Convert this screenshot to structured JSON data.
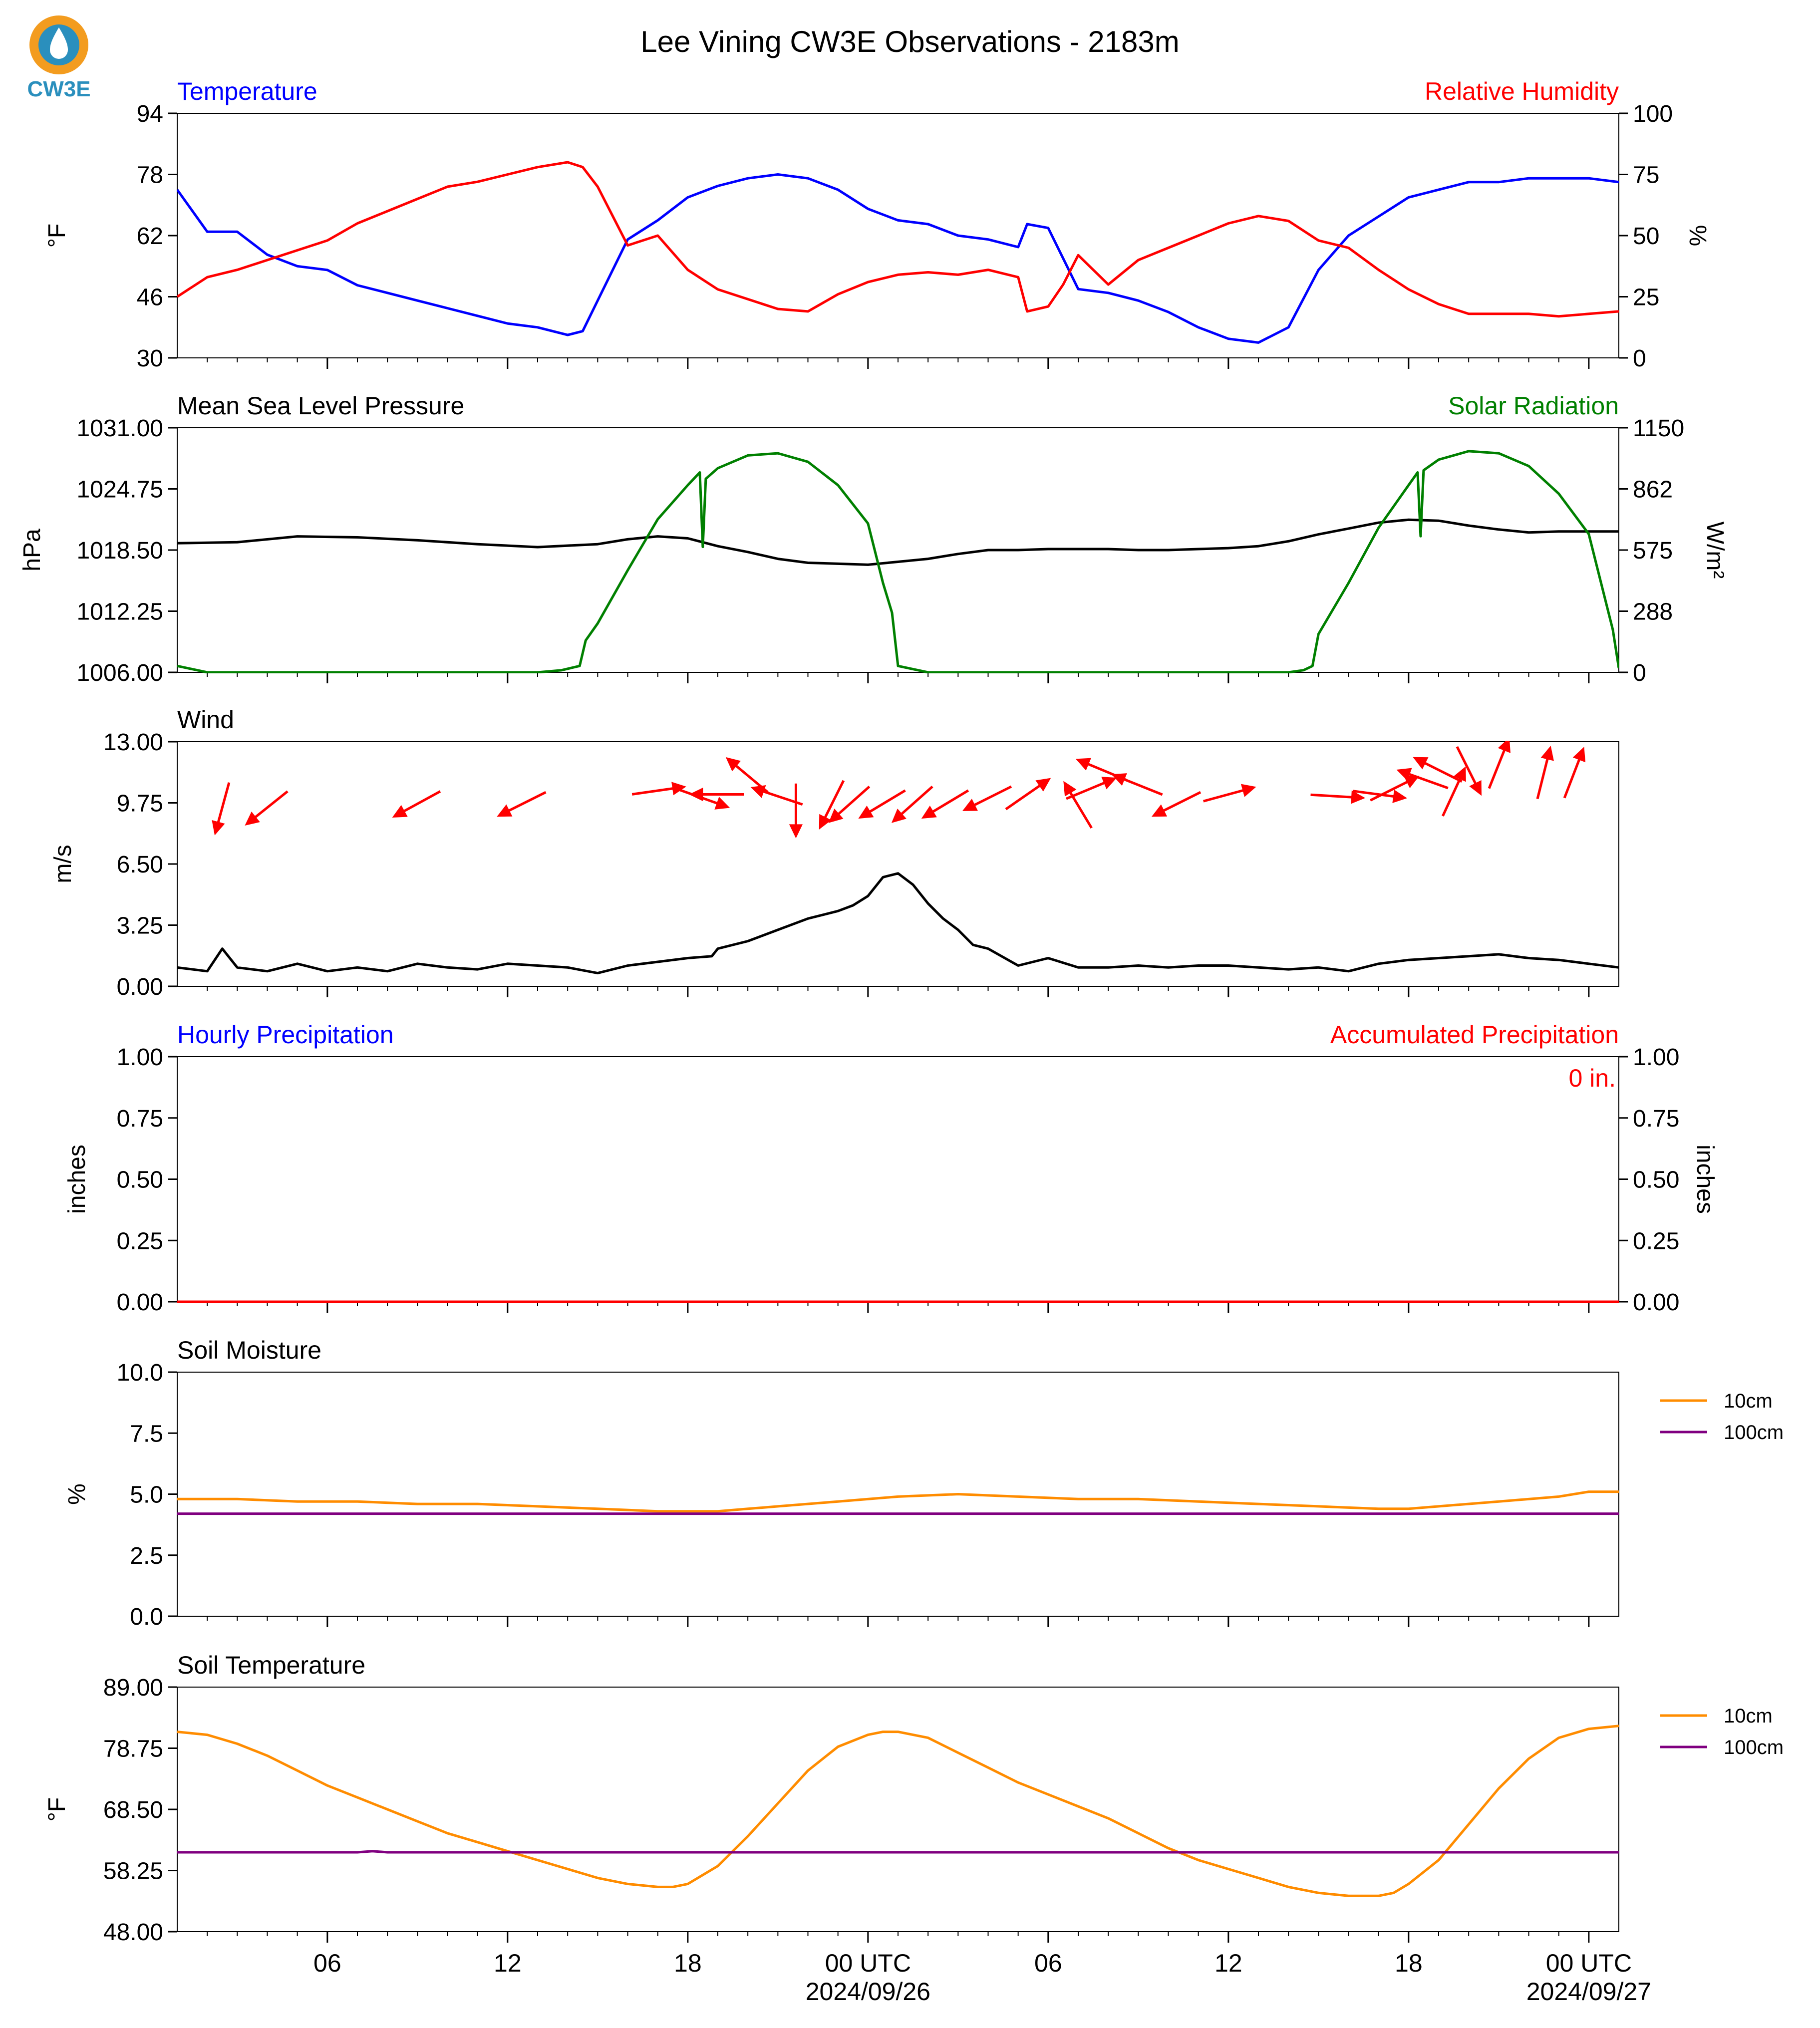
{
  "page_title": "Lee Vining CW3E Observations - 2183m",
  "logo": {
    "text": "CW3E",
    "icon": "cw3e-logo-icon",
    "accent": "#2a8fbd",
    "ring": "#f39c1f"
  },
  "colors": {
    "temperature": "#0000ff",
    "humidity": "#ff0000",
    "pressure": "#000000",
    "solar": "#008000",
    "wind_arrow": "#ff0000",
    "wind_speed": "#000000",
    "soil_10cm": "#ff8c00",
    "soil_100cm": "#800080"
  },
  "x_axis": {
    "range_hours": [
      0,
      48
    ],
    "ticks": [
      {
        "hour": 5,
        "label": "06",
        "sublabel": ""
      },
      {
        "hour": 11,
        "label": "12",
        "sublabel": ""
      },
      {
        "hour": 17,
        "label": "18",
        "sublabel": ""
      },
      {
        "hour": 23,
        "label": "00 UTC",
        "sublabel": "2024/09/26"
      },
      {
        "hour": 29,
        "label": "06",
        "sublabel": ""
      },
      {
        "hour": 35,
        "label": "12",
        "sublabel": ""
      },
      {
        "hour": 41,
        "label": "18",
        "sublabel": ""
      },
      {
        "hour": 47,
        "label": "00 UTC",
        "sublabel": "2024/09/27"
      }
    ]
  },
  "chart_data": [
    {
      "type": "line",
      "left_title": "Temperature",
      "right_title": "Relative Humidity",
      "ylabel": "°F",
      "y2label": "%",
      "ylim": [
        30,
        94
      ],
      "yticks": [
        "30",
        "46",
        "62",
        "78",
        "94"
      ],
      "y2lim": [
        0,
        100
      ],
      "y2ticks": [
        "0",
        "25",
        "50",
        "75",
        "100"
      ],
      "series": [
        {
          "axis": "left",
          "color": "#0000ff",
          "x": [
            0,
            1,
            2,
            3,
            4,
            5,
            6,
            7,
            8,
            9,
            10,
            11,
            12,
            13,
            13.5,
            14,
            15,
            16,
            17,
            18,
            19,
            20,
            21,
            22,
            23,
            24,
            25,
            26,
            27,
            28,
            28.3,
            29,
            29.5,
            30,
            31,
            32,
            33,
            34,
            35,
            36,
            37,
            38,
            39,
            40,
            41,
            42,
            43,
            44,
            45,
            46,
            47,
            48
          ],
          "y": [
            74,
            63,
            63,
            57,
            54,
            53,
            49,
            47,
            45,
            43,
            41,
            39,
            38,
            36,
            37,
            45,
            61,
            66,
            72,
            75,
            77,
            78,
            77,
            74,
            69,
            66,
            65,
            62,
            61,
            59,
            65,
            64,
            56,
            48,
            47,
            45,
            42,
            38,
            35,
            34,
            38,
            53,
            62,
            67,
            72,
            74,
            76,
            76,
            77,
            77,
            77,
            76
          ]
        },
        {
          "axis": "right",
          "color": "#ff0000",
          "x": [
            0,
            1,
            2,
            3,
            4,
            5,
            6,
            7,
            8,
            9,
            10,
            11,
            12,
            13,
            13.5,
            14,
            15,
            16,
            17,
            18,
            19,
            20,
            21,
            22,
            23,
            24,
            25,
            26,
            27,
            28,
            28.3,
            29,
            29.5,
            30,
            31,
            32,
            33,
            34,
            35,
            36,
            37,
            38,
            39,
            40,
            41,
            42,
            43,
            44,
            45,
            46,
            47,
            48
          ],
          "y": [
            25,
            33,
            36,
            40,
            44,
            48,
            55,
            60,
            65,
            70,
            72,
            75,
            78,
            80,
            78,
            70,
            46,
            50,
            36,
            28,
            24,
            20,
            19,
            26,
            31,
            34,
            35,
            34,
            36,
            33,
            19,
            21,
            30,
            42,
            30,
            40,
            45,
            50,
            55,
            58,
            56,
            48,
            45,
            36,
            28,
            22,
            18,
            18,
            18,
            17,
            18,
            19
          ]
        }
      ]
    },
    {
      "type": "line",
      "left_title": "Mean Sea Level Pressure",
      "right_title": "Solar Radiation",
      "ylabel": "hPa",
      "y2label": "W/m²",
      "ylim": [
        1006.0,
        1031.0
      ],
      "yticks": [
        "1006.00",
        "1012.25",
        "1018.50",
        "1024.75",
        "1031.00"
      ],
      "y2lim": [
        0,
        1150
      ],
      "y2ticks": [
        "0",
        "288",
        "575",
        "862",
        "1150"
      ],
      "series": [
        {
          "axis": "left",
          "color": "#000000",
          "x": [
            0,
            2,
            4,
            6,
            8,
            10,
            12,
            14,
            15,
            16,
            17,
            18,
            19,
            20,
            21,
            22,
            23,
            24,
            25,
            26,
            27,
            28,
            29,
            30,
            31,
            32,
            33,
            34,
            35,
            36,
            37,
            38,
            39,
            40,
            41,
            42,
            43,
            44,
            45,
            46,
            47,
            48
          ],
          "y": [
            1019.2,
            1019.3,
            1019.9,
            1019.8,
            1019.5,
            1019.1,
            1018.8,
            1019.1,
            1019.6,
            1019.9,
            1019.7,
            1018.9,
            1018.3,
            1017.6,
            1017.2,
            1017.1,
            1017.0,
            1017.3,
            1017.6,
            1018.1,
            1018.5,
            1018.5,
            1018.6,
            1018.6,
            1018.6,
            1018.5,
            1018.5,
            1018.6,
            1018.7,
            1018.9,
            1019.4,
            1020.1,
            1020.7,
            1021.3,
            1021.6,
            1021.5,
            1021.0,
            1020.6,
            1020.3,
            1020.4,
            1020.4,
            1020.4
          ]
        },
        {
          "axis": "right",
          "color": "#008000",
          "x": [
            0,
            1,
            2,
            4,
            6,
            8,
            10,
            12,
            12.8,
            13.4,
            13.6,
            14,
            15,
            16,
            17,
            17.4,
            17.5,
            17.6,
            18,
            19,
            20,
            21,
            22,
            23,
            23.5,
            23.8,
            24,
            25,
            26,
            28,
            30,
            32,
            34,
            36,
            37,
            37.5,
            37.8,
            38,
            39,
            40,
            41,
            41.3,
            41.4,
            41.5,
            42,
            43,
            44,
            45,
            46,
            47,
            47.8,
            48
          ],
          "y": [
            30,
            0,
            0,
            0,
            0,
            0,
            0,
            0,
            10,
            30,
            150,
            230,
            480,
            720,
            880,
            940,
            590,
            910,
            960,
            1020,
            1030,
            990,
            880,
            700,
            420,
            280,
            30,
            0,
            0,
            0,
            0,
            0,
            0,
            0,
            0,
            10,
            30,
            180,
            420,
            680,
            880,
            940,
            640,
            950,
            1000,
            1040,
            1030,
            970,
            840,
            650,
            200,
            20
          ]
        }
      ]
    },
    {
      "type": "line",
      "left_title": "Wind",
      "ylabel": "m/s",
      "ylim": [
        0.0,
        13.0
      ],
      "yticks": [
        "0.00",
        "3.25",
        "6.50",
        "9.75",
        "13.00"
      ],
      "series": [
        {
          "axis": "left",
          "color": "#000000",
          "x": [
            0,
            1,
            1.5,
            2,
            3,
            4,
            5,
            6,
            7,
            8,
            9,
            10,
            11,
            12,
            13,
            14,
            15,
            16,
            17,
            17.8,
            18,
            19,
            20,
            21,
            22,
            22.5,
            23,
            23.5,
            24,
            24.5,
            25,
            25.5,
            26,
            26.5,
            27,
            28,
            29,
            30,
            31,
            32,
            33,
            34,
            35,
            36,
            37,
            38,
            39,
            40,
            41,
            42,
            43,
            44,
            45,
            46,
            47,
            48
          ],
          "y": [
            1.0,
            0.8,
            2.0,
            1.0,
            0.8,
            1.2,
            0.8,
            1.0,
            0.8,
            1.2,
            1.0,
            0.9,
            1.2,
            1.1,
            1.0,
            0.7,
            1.1,
            1.3,
            1.5,
            1.6,
            2.0,
            2.4,
            3.0,
            3.6,
            4.0,
            4.3,
            4.8,
            5.8,
            6.0,
            5.4,
            4.4,
            3.6,
            3.0,
            2.2,
            2.0,
            1.1,
            1.5,
            1.0,
            1.0,
            1.1,
            1.0,
            1.1,
            1.1,
            1.0,
            0.9,
            1.0,
            0.8,
            1.2,
            1.4,
            1.5,
            1.6,
            1.7,
            1.5,
            1.4,
            1.2,
            1.0
          ]
        },
        {
          "axis": "left",
          "color": "#ff0000",
          "kind": "direction-arrows",
          "x": [
            1.5,
            3,
            8,
            11.5,
            16,
            17.5,
            18,
            19,
            20,
            20.6,
            21.8,
            22.4,
            23.5,
            24.5,
            25.6,
            27,
            28.3,
            30,
            30.4,
            30.8,
            32,
            33.3,
            35,
            38.6,
            40,
            40.5,
            41.5,
            42,
            42.5,
            43,
            44,
            45.5,
            46.5
          ],
          "y": [
            9.5,
            9.5,
            9.7,
            9.7,
            10.4,
            10.0,
            10.2,
            11.2,
            10.1,
            9.4,
            9.7,
            9.7,
            9.7,
            9.7,
            9.7,
            10.0,
            10.2,
            9.6,
            10.5,
            11.5,
            10.7,
            9.7,
            10.2,
            10.1,
            10.2,
            10.5,
            11.0,
            11.5,
            10.3,
            11.5,
            11.8,
            11.3,
            11.3
          ],
          "u": [
            -0.3,
            -1.0,
            -1.1,
            -1.2,
            1.4,
            1.4,
            -1.3,
            -1.2,
            -0.9,
            0.0,
            -0.5,
            -0.9,
            -1.0,
            -0.9,
            -1.0,
            -1.2,
            1.3,
            -0.6,
            1.2,
            -1.2,
            -1.0,
            -1.2,
            1.1,
            1.7,
            1.5,
            1.2,
            -1.4,
            -1.2,
            0.6,
            0.5,
            0.6,
            0.4,
            0.5
          ],
          "v": [
            -1.1,
            -0.8,
            -0.6,
            -0.6,
            0.2,
            -0.5,
            0.0,
            1.0,
            0.3,
            -1.0,
            -1.0,
            -0.8,
            -0.6,
            -0.8,
            -0.6,
            -0.6,
            0.9,
            1.0,
            0.5,
            0.5,
            0.4,
            -0.6,
            0.3,
            -0.1,
            -0.2,
            0.6,
            0.5,
            0.6,
            1.3,
            -1.0,
            1.5,
            1.6,
            1.3
          ]
        }
      ]
    },
    {
      "type": "line",
      "left_title": "Hourly Precipitation",
      "right_title": "Accumulated Precipitation",
      "annotation": "0 in.",
      "ylabel": "inches",
      "y2label": "inches",
      "ylim": [
        0.0,
        1.0
      ],
      "yticks": [
        "0.00",
        "0.25",
        "0.50",
        "0.75",
        "1.00"
      ],
      "y2lim": [
        0.0,
        1.0
      ],
      "y2ticks": [
        "0.00",
        "0.25",
        "0.50",
        "0.75",
        "1.00"
      ],
      "series": [
        {
          "axis": "left",
          "color": "#0000ff",
          "x": [
            0,
            48
          ],
          "y": [
            0,
            0
          ]
        },
        {
          "axis": "right",
          "color": "#ff0000",
          "x": [
            0,
            48
          ],
          "y": [
            0,
            0
          ]
        }
      ]
    },
    {
      "type": "line",
      "left_title": "Soil Moisture",
      "ylabel": "%",
      "ylim": [
        0.0,
        10.0
      ],
      "yticks": [
        "0.0",
        "2.5",
        "5.0",
        "7.5",
        "10.0"
      ],
      "legend": [
        "10cm",
        "100cm"
      ],
      "legend_placement": "outside-right",
      "series": [
        {
          "name": "10cm",
          "axis": "left",
          "color": "#ff8c00",
          "x": [
            0,
            2,
            4,
            6,
            8,
            10,
            12,
            14,
            16,
            17,
            18,
            19,
            20,
            22,
            24,
            26,
            28,
            30,
            32,
            34,
            36,
            38,
            40,
            41,
            42,
            44,
            46,
            47,
            48
          ],
          "y": [
            4.8,
            4.8,
            4.7,
            4.7,
            4.6,
            4.6,
            4.5,
            4.4,
            4.3,
            4.3,
            4.3,
            4.4,
            4.5,
            4.7,
            4.9,
            5.0,
            4.9,
            4.8,
            4.8,
            4.7,
            4.6,
            4.5,
            4.4,
            4.4,
            4.5,
            4.7,
            4.9,
            5.1,
            5.1
          ]
        },
        {
          "name": "100cm",
          "axis": "left",
          "color": "#800080",
          "x": [
            0,
            48
          ],
          "y": [
            4.2,
            4.2
          ]
        }
      ]
    },
    {
      "type": "line",
      "left_title": "Soil Temperature",
      "ylabel": "°F",
      "ylim": [
        48.0,
        89.0
      ],
      "yticks": [
        "48.00",
        "58.25",
        "68.50",
        "78.75",
        "89.00"
      ],
      "legend": [
        "10cm",
        "100cm"
      ],
      "legend_placement": "outside-right",
      "series": [
        {
          "name": "10cm",
          "axis": "left",
          "color": "#ff8c00",
          "x": [
            0,
            1,
            2,
            3,
            4,
            5,
            6,
            7,
            8,
            9,
            10,
            11,
            12,
            13,
            14,
            15,
            16,
            16.5,
            17,
            18,
            19,
            20,
            21,
            22,
            23,
            23.5,
            24,
            25,
            26,
            27,
            28,
            29,
            30,
            31,
            32,
            33,
            34,
            35,
            36,
            37,
            38,
            39,
            40,
            40.5,
            41,
            42,
            43,
            44,
            45,
            46,
            47,
            48
          ],
          "y": [
            81.5,
            81,
            79.5,
            77.5,
            75,
            72.5,
            70.5,
            68.5,
            66.5,
            64.5,
            63,
            61.5,
            60,
            58.5,
            57,
            56,
            55.5,
            55.5,
            56,
            59,
            64,
            69.5,
            75,
            79,
            81,
            81.5,
            81.5,
            80.5,
            78,
            75.5,
            73,
            71,
            69,
            67,
            64.5,
            62,
            60,
            58.5,
            57,
            55.5,
            54.5,
            54,
            54,
            54.5,
            56,
            60,
            66,
            72,
            77,
            80.5,
            82,
            82.5
          ]
        },
        {
          "name": "100cm",
          "axis": "left",
          "color": "#800080",
          "x": [
            0,
            6,
            6.5,
            7,
            48
          ],
          "y": [
            61.3,
            61.3,
            61.5,
            61.3,
            61.3
          ]
        }
      ]
    }
  ]
}
